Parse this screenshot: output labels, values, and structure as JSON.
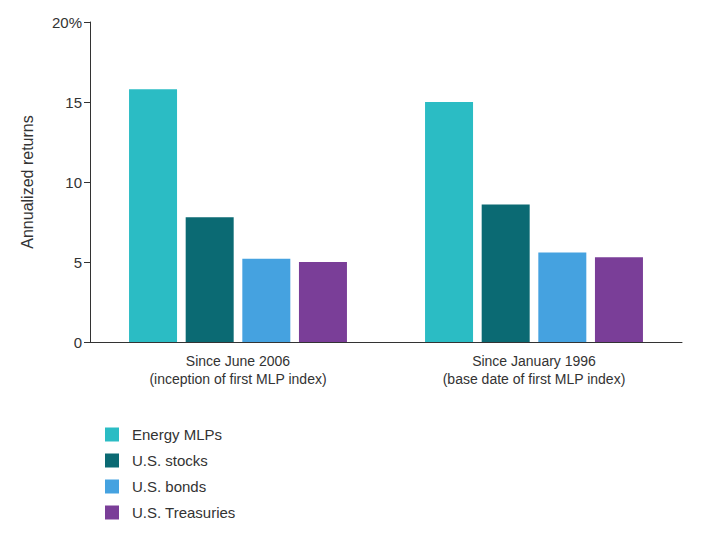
{
  "chart_data": {
    "type": "bar",
    "y_label": "Annualized returns",
    "categories": [
      "Since June 2006\n(inception of first MLP index)",
      "Since January 1996\n(base date of first MLP index)"
    ],
    "series": [
      {
        "name": "Energy MLPs",
        "color": "#2bbcc4",
        "values": [
          15.8,
          15.0
        ]
      },
      {
        "name": "U.S. stocks",
        "color": "#0b6a73",
        "values": [
          7.8,
          8.6
        ]
      },
      {
        "name": "U.S. bonds",
        "color": "#45a2e0",
        "values": [
          5.2,
          5.6
        ]
      },
      {
        "name": "U.S. Treasuries",
        "color": "#7a3e98",
        "values": [
          5.0,
          5.3
        ]
      }
    ],
    "ylim": [
      0,
      20
    ],
    "yticks": [
      0,
      5,
      10,
      15,
      {
        "value": 20,
        "label": "20%"
      }
    ],
    "grid": false,
    "legend": "bottom-left"
  }
}
